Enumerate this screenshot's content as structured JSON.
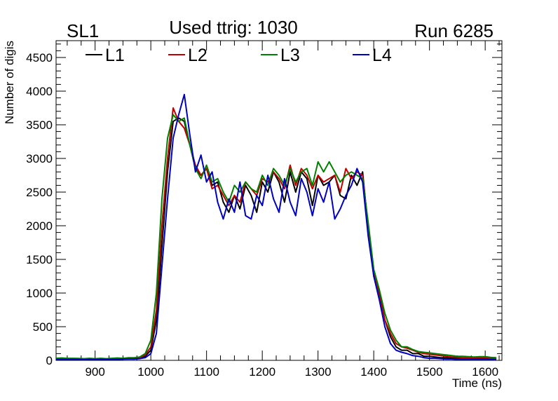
{
  "header": {
    "left_label": "SL1",
    "center_label": "Used ttrig: 1030",
    "right_label": "Run 6285"
  },
  "chart_data": {
    "type": "line",
    "xlabel": "Time (ns)",
    "ylabel": "Number of digis",
    "xlim": [
      830,
      1630
    ],
    "ylim": [
      0,
      4750
    ],
    "x_ticks": [
      900,
      1000,
      1100,
      1200,
      1300,
      1400,
      1500,
      1600
    ],
    "y_ticks": [
      0,
      500,
      1000,
      1500,
      2000,
      2500,
      3000,
      3500,
      4000,
      4500
    ],
    "grid": false,
    "legend_position": "top",
    "x": [
      830,
      840,
      850,
      860,
      870,
      880,
      890,
      900,
      910,
      920,
      930,
      940,
      950,
      960,
      970,
      980,
      990,
      1000,
      1010,
      1020,
      1030,
      1040,
      1050,
      1060,
      1070,
      1080,
      1090,
      1100,
      1110,
      1120,
      1130,
      1140,
      1150,
      1160,
      1170,
      1180,
      1190,
      1200,
      1210,
      1220,
      1230,
      1240,
      1250,
      1260,
      1270,
      1280,
      1290,
      1300,
      1310,
      1320,
      1330,
      1340,
      1350,
      1360,
      1370,
      1380,
      1390,
      1400,
      1410,
      1420,
      1430,
      1440,
      1450,
      1460,
      1470,
      1480,
      1490,
      1500,
      1510,
      1520,
      1530,
      1540,
      1550,
      1560,
      1570,
      1580,
      1590,
      1600,
      1610,
      1620
    ],
    "series": [
      {
        "name": "L1",
        "color": "#000000",
        "values": [
          20,
          20,
          15,
          20,
          18,
          20,
          15,
          20,
          22,
          15,
          20,
          18,
          20,
          25,
          20,
          30,
          60,
          150,
          600,
          1700,
          2800,
          3550,
          3600,
          3550,
          3200,
          2850,
          2750,
          2850,
          2600,
          2650,
          2350,
          2200,
          2450,
          2250,
          2600,
          2450,
          2200,
          2650,
          2500,
          2800,
          2650,
          2350,
          2800,
          2500,
          2800,
          2700,
          2300,
          2750,
          2600,
          2650,
          2750,
          2450,
          2400,
          2750,
          2600,
          2800,
          1950,
          1250,
          1000,
          600,
          350,
          200,
          150,
          150,
          100,
          100,
          60,
          60,
          50,
          40,
          40,
          30,
          30,
          35,
          25,
          30,
          25,
          30,
          30,
          20
        ]
      },
      {
        "name": "L2",
        "color": "#c00000",
        "values": [
          25,
          20,
          25,
          20,
          20,
          22,
          18,
          25,
          20,
          20,
          25,
          20,
          22,
          25,
          30,
          40,
          80,
          200,
          750,
          2000,
          3000,
          3750,
          3550,
          3450,
          3200,
          2900,
          2750,
          2850,
          2550,
          2600,
          2450,
          2300,
          2450,
          2350,
          2650,
          2550,
          2450,
          2700,
          2650,
          2800,
          2700,
          2550,
          2900,
          2600,
          2850,
          2750,
          2550,
          2750,
          2650,
          2700,
          2750,
          2500,
          2850,
          2700,
          2800,
          2750,
          2000,
          1300,
          950,
          600,
          400,
          250,
          200,
          180,
          150,
          120,
          100,
          90,
          80,
          70,
          60,
          50,
          45,
          40,
          35,
          35,
          40,
          40,
          30,
          25
        ]
      },
      {
        "name": "L3",
        "color": "#008000",
        "values": [
          30,
          35,
          30,
          30,
          28,
          25,
          30,
          25,
          30,
          25,
          30,
          35,
          30,
          40,
          40,
          50,
          100,
          300,
          1000,
          2400,
          3300,
          3650,
          3550,
          3600,
          3200,
          2850,
          2700,
          2900,
          2650,
          2700,
          2500,
          2350,
          2600,
          2500,
          2650,
          2550,
          2500,
          2750,
          2600,
          2850,
          2750,
          2600,
          2850,
          2650,
          2800,
          2850,
          2600,
          2950,
          2800,
          2950,
          2800,
          2650,
          2750,
          2800,
          2750,
          2700,
          2050,
          1350,
          1050,
          700,
          450,
          300,
          200,
          200,
          160,
          130,
          120,
          110,
          100,
          90,
          80,
          70,
          60,
          60,
          55,
          50,
          55,
          55,
          45,
          40
        ]
      },
      {
        "name": "L4",
        "color": "#0000c0",
        "values": [
          15,
          15,
          12,
          15,
          15,
          10,
          15,
          12,
          15,
          15,
          12,
          15,
          18,
          20,
          20,
          25,
          40,
          100,
          400,
          1400,
          2400,
          3300,
          3650,
          3950,
          3350,
          2800,
          3050,
          2650,
          2800,
          2350,
          2100,
          2400,
          2200,
          2650,
          2150,
          2100,
          2450,
          2300,
          2750,
          2400,
          2200,
          2700,
          2350,
          2150,
          2700,
          2500,
          2150,
          2550,
          2350,
          2650,
          2100,
          2250,
          2450,
          2600,
          2850,
          2650,
          1850,
          1250,
          900,
          500,
          250,
          150,
          120,
          100,
          70,
          60,
          40,
          30,
          30,
          25,
          20,
          20,
          15,
          15,
          12,
          10,
          12,
          10,
          10,
          8
        ]
      }
    ]
  }
}
